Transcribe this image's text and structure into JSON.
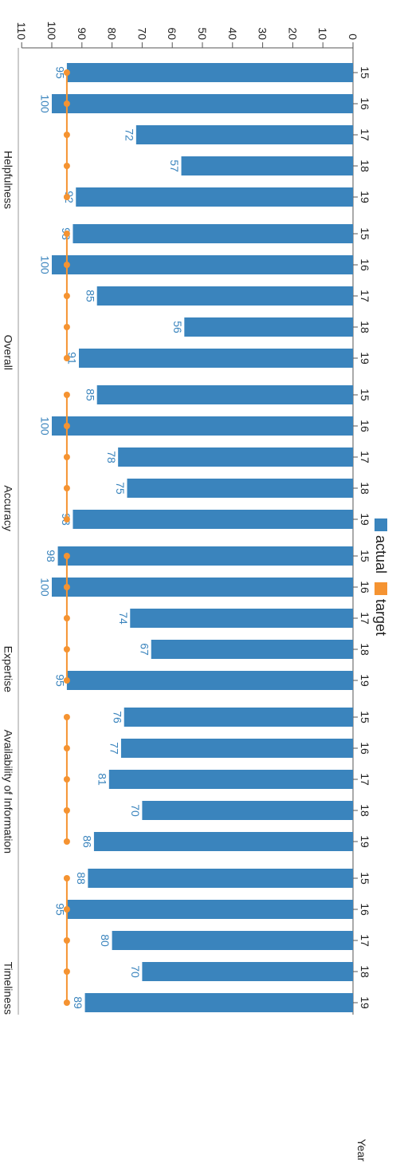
{
  "chart_data": {
    "type": "bar",
    "orientation": "rotated-90-clockwise",
    "x_axis_title": "Year",
    "categories": [
      "15",
      "16",
      "17",
      "18",
      "19"
    ],
    "y_ticks": [
      0,
      10,
      20,
      30,
      40,
      50,
      60,
      70,
      80,
      90,
      100,
      110
    ],
    "ylim": [
      0,
      110
    ],
    "panels": [
      {
        "title": "Helpfulness",
        "actual": [
          95,
          100,
          72,
          57,
          92
        ],
        "target": [
          95,
          95,
          95,
          95,
          95
        ]
      },
      {
        "title": "Overall",
        "actual": [
          93,
          100,
          85,
          56,
          91
        ],
        "target": [
          95,
          95,
          95,
          95,
          95
        ]
      },
      {
        "title": "Accuracy",
        "actual": [
          85,
          100,
          78,
          75,
          93
        ],
        "target": [
          95,
          95,
          95,
          95,
          95
        ]
      },
      {
        "title": "Expertise",
        "actual": [
          98,
          100,
          74,
          67,
          95
        ],
        "target": [
          95,
          95,
          95,
          95,
          95
        ]
      },
      {
        "title": "Availability of Information",
        "actual": [
          76,
          77,
          81,
          70,
          86
        ],
        "target": [
          95,
          95,
          95,
          95,
          95
        ]
      },
      {
        "title": "Timeliness",
        "actual": [
          88,
          95,
          80,
          70,
          89
        ],
        "target": [
          95,
          95,
          95,
          95,
          95
        ]
      }
    ],
    "series": [
      {
        "name": "actual",
        "mark": "bar",
        "color": "#3a84bd"
      },
      {
        "name": "target",
        "mark": "line-with-points",
        "color": "#f59331"
      }
    ],
    "legend_placement": "bottom-center (rotated)",
    "grid": false
  }
}
